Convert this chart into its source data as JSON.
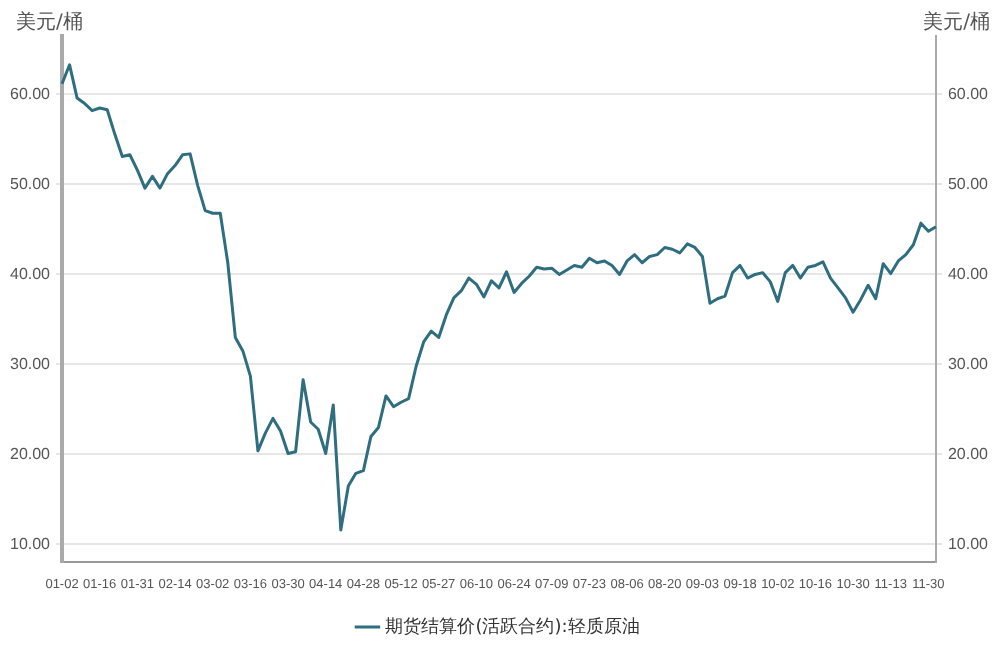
{
  "chart_data": {
    "type": "line",
    "ylabel": "美元/桶",
    "y2label": "美元/桶",
    "categories": [
      "01-02",
      null,
      null,
      null,
      null,
      "01-16",
      null,
      null,
      null,
      null,
      "01-31",
      null,
      null,
      null,
      null,
      "02-14",
      null,
      null,
      null,
      null,
      "03-02",
      null,
      null,
      null,
      null,
      "03-16",
      null,
      null,
      null,
      null,
      "03-30",
      null,
      null,
      null,
      null,
      "04-14",
      null,
      null,
      null,
      null,
      "04-28",
      null,
      null,
      null,
      null,
      "05-12",
      null,
      null,
      null,
      null,
      "05-27",
      null,
      null,
      null,
      null,
      "06-10",
      null,
      null,
      null,
      null,
      "06-24",
      null,
      null,
      null,
      null,
      "07-09",
      null,
      null,
      null,
      null,
      "07-23",
      null,
      null,
      null,
      null,
      "08-06",
      null,
      null,
      null,
      null,
      "08-20",
      null,
      null,
      null,
      null,
      "09-03",
      null,
      null,
      null,
      null,
      "09-18",
      null,
      null,
      null,
      null,
      "10-02",
      null,
      null,
      null,
      null,
      "10-16",
      null,
      null,
      null,
      null,
      "10-30",
      null,
      null,
      null,
      null,
      "11-13",
      null,
      null,
      null,
      null,
      "11-30",
      null
    ],
    "series": [
      {
        "name": "期货结算价(活跃合约):轻质原油",
        "color": "#2e6e80",
        "values": [
          61.2,
          63.3,
          59.6,
          59.0,
          58.2,
          58.5,
          58.3,
          55.6,
          53.1,
          53.3,
          51.6,
          49.6,
          50.9,
          49.6,
          51.2,
          52.1,
          53.3,
          53.4,
          49.9,
          47.1,
          46.8,
          46.8,
          41.3,
          33.0,
          31.5,
          28.7,
          20.4,
          22.4,
          24.0,
          22.6,
          20.1,
          20.3,
          28.3,
          23.6,
          22.8,
          20.1,
          25.5,
          11.6,
          16.5,
          17.9,
          18.2,
          22.0,
          23.0,
          26.5,
          25.3,
          25.8,
          26.2,
          29.8,
          32.5,
          33.7,
          33.0,
          35.5,
          37.4,
          38.2,
          39.6,
          38.9,
          37.5,
          39.3,
          38.5,
          40.3,
          38.0,
          39.0,
          39.8,
          40.8,
          40.6,
          40.7,
          40.0,
          40.5,
          41.0,
          40.8,
          41.8,
          41.3,
          41.5,
          41.0,
          40.0,
          41.5,
          42.2,
          41.3,
          42.0,
          42.2,
          43.0,
          42.8,
          42.4,
          43.4,
          43.0,
          42.0,
          36.8,
          37.3,
          37.6,
          40.2,
          41.0,
          39.6,
          40.0,
          40.2,
          39.2,
          37.0,
          40.2,
          41.0,
          39.6,
          40.8,
          41.0,
          41.4,
          39.6,
          38.5,
          37.4,
          35.8,
          37.2,
          38.8,
          37.3,
          41.2,
          40.1,
          41.5,
          42.2,
          43.3,
          45.7,
          44.8,
          45.3
        ]
      }
    ],
    "ylim": [
      8,
      66.5
    ],
    "yticks": [
      {
        "value": 10,
        "label": "10.00"
      },
      {
        "value": 20,
        "label": "20.00"
      },
      {
        "value": 30,
        "label": "30.00"
      },
      {
        "value": 40,
        "label": "40.00"
      },
      {
        "value": 50,
        "label": "50.00"
      },
      {
        "value": 60,
        "label": "60.00"
      }
    ],
    "y2lim": [
      8,
      66.5
    ],
    "y2ticks": [
      {
        "value": 10,
        "label": "10.00"
      },
      {
        "value": 20,
        "label": "20.00"
      },
      {
        "value": 30,
        "label": "30.00"
      },
      {
        "value": 40,
        "label": "40.00"
      },
      {
        "value": 50,
        "label": "50.00"
      },
      {
        "value": 60,
        "label": "60.00"
      }
    ],
    "grid": "y",
    "legend": "bottom",
    "marker": "none",
    "line_style": "solid"
  }
}
